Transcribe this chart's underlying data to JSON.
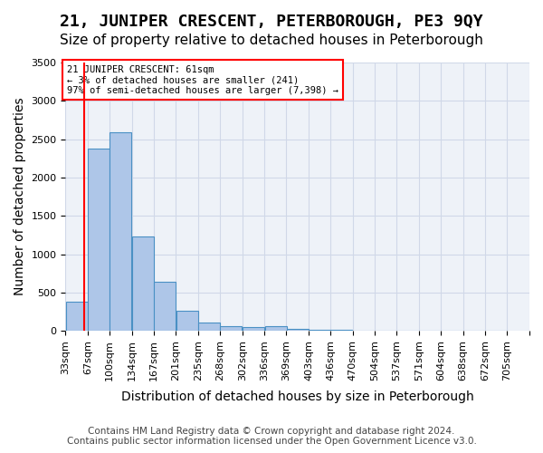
{
  "title": "21, JUNIPER CRESCENT, PETERBOROUGH, PE3 9QY",
  "subtitle": "Size of property relative to detached houses in Peterborough",
  "xlabel": "Distribution of detached houses by size in Peterborough",
  "ylabel": "Number of detached properties",
  "footer_line1": "Contains HM Land Registry data © Crown copyright and database right 2024.",
  "footer_line2": "Contains public sector information licensed under the Open Government Licence v3.0.",
  "bin_labels": [
    "33sqm",
    "67sqm",
    "100sqm",
    "134sqm",
    "167sqm",
    "201sqm",
    "235sqm",
    "268sqm",
    "302sqm",
    "336sqm",
    "369sqm",
    "403sqm",
    "436sqm",
    "470sqm",
    "504sqm",
    "537sqm",
    "571sqm",
    "604sqm",
    "638sqm",
    "672sqm",
    "705sqm"
  ],
  "bin_edges": [
    33,
    67,
    100,
    134,
    167,
    201,
    235,
    268,
    302,
    336,
    369,
    403,
    436,
    470,
    504,
    537,
    571,
    604,
    638,
    672,
    705
  ],
  "bar_heights": [
    375,
    2380,
    2590,
    1230,
    635,
    265,
    110,
    65,
    50,
    65,
    25,
    15,
    10,
    5,
    0,
    0,
    0,
    0,
    0,
    0
  ],
  "bar_color": "#aec6e8",
  "bar_edge_color": "#4a90c4",
  "property_size": 61,
  "annotation_text": "21 JUNIPER CRESCENT: 61sqm\n← 3% of detached houses are smaller (241)\n97% of semi-detached houses are larger (7,398) →",
  "annotation_box_color": "#ff0000",
  "vline_color": "#ff0000",
  "ylim": [
    0,
    3500
  ],
  "yticks": [
    0,
    500,
    1000,
    1500,
    2000,
    2500,
    3000,
    3500
  ],
  "grid_color": "#d0d8e8",
  "bg_color": "#eef2f8",
  "title_fontsize": 13,
  "subtitle_fontsize": 11,
  "label_fontsize": 10,
  "tick_fontsize": 8,
  "footer_fontsize": 7.5
}
